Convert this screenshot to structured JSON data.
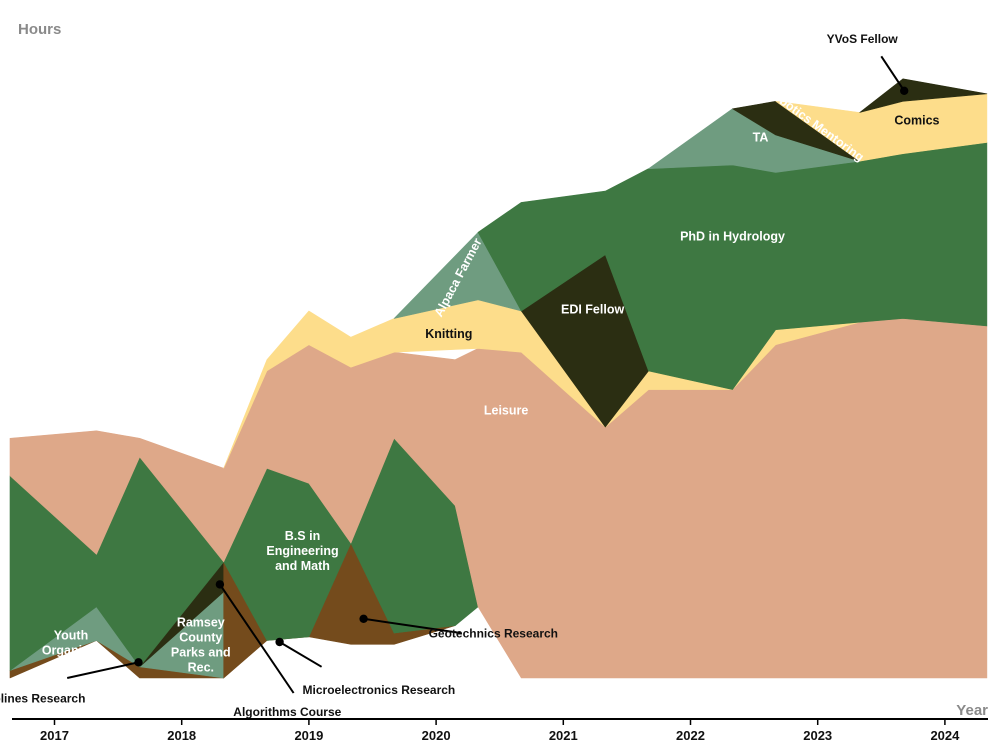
{
  "chart_data": {
    "type": "area",
    "ylabel": "Hours",
    "xlabel": "Year",
    "x_ticks": [
      "2017",
      "2018",
      "2019",
      "2020",
      "2021",
      "2022",
      "2023",
      "2024"
    ],
    "grid": false,
    "colors": {
      "green": "#3e7842",
      "sage": "#6f9c80",
      "peach": "#dea889",
      "yellow": "#fddd8b",
      "dark": "#2b2e12",
      "brown": "#744b1c"
    },
    "series": [
      {
        "name": "Splines Research",
        "color": "#744b1c",
        "x": [
          2016.65,
          2017.33,
          2017.67,
          2018.33
        ],
        "lower": [
          0,
          10,
          0,
          0
        ],
        "upper": [
          2,
          10,
          3,
          0
        ]
      },
      {
        "name": "Youth Organizer",
        "color": "#6f9c80",
        "x": [
          2016.65,
          2017.33,
          2017.67
        ],
        "lower": [
          2,
          10,
          3
        ],
        "upper": [
          2,
          19,
          3
        ]
      },
      {
        "name": "Ramsey County Parks and Rec.",
        "color": "#6f9c80",
        "x": [
          2017.67,
          2018.33
        ],
        "lower": [
          3,
          0
        ],
        "upper": [
          3,
          23
        ]
      },
      {
        "name": "Algorithms Course",
        "color": "#2b2e12",
        "x": [
          2017.67,
          2018.33
        ],
        "lower": [
          3,
          23
        ],
        "upper": [
          3,
          31
        ]
      },
      {
        "name": "Microelectronics Research",
        "color": "#744b1c",
        "x": [
          2018.33,
          2018.67,
          2019
        ],
        "lower": [
          0,
          10,
          11
        ],
        "upper": [
          31,
          10,
          11
        ]
      },
      {
        "name": "Geotechnics Research",
        "color": "#744b1c",
        "x": [
          2019,
          2019.33,
          2019.67,
          2020.15
        ],
        "lower": [
          11,
          9,
          9,
          14
        ],
        "upper": [
          11,
          36,
          12,
          14
        ]
      },
      {
        "name": "B.S in Engineering and Math",
        "color": "#3e7842",
        "x": [
          2016.65,
          2017.33,
          2017.67,
          2018.33,
          2018.67,
          2019,
          2019.33,
          2019.67,
          2020.15,
          2020.33
        ],
        "lower": [
          2,
          19,
          3,
          31,
          10,
          11,
          36,
          12,
          14,
          19
        ],
        "upper": [
          54,
          33,
          59,
          31,
          56,
          52,
          36,
          64,
          46,
          19
        ]
      },
      {
        "name": "Leisure",
        "color": "#dea889",
        "x": [
          2016.65,
          2017.33,
          2017.67,
          2018.33,
          2018.67,
          2019,
          2019.33,
          2019.67,
          2020.15,
          2020.33,
          2020.67,
          2021.33,
          2021.67,
          2022.33,
          2022.67,
          2023.33,
          2023.67,
          2024.33
        ],
        "lower": [
          54,
          33,
          59,
          31,
          56,
          52,
          36,
          64,
          46,
          19,
          0,
          0,
          0,
          0,
          0,
          0,
          0,
          0
        ],
        "upper": [
          64,
          66,
          64,
          56,
          82,
          89,
          83,
          87,
          85,
          88,
          87,
          67,
          77,
          77,
          89,
          95,
          96,
          94
        ]
      },
      {
        "name": "Knitting",
        "color": "#fddd8b",
        "x": [
          2018.33,
          2018.67,
          2019,
          2019.33,
          2019.67,
          2020.33,
          2020.67,
          2021.33,
          2021.67,
          2022.33,
          2022.67,
          2023.33
        ],
        "lower": [
          56,
          82,
          89,
          83,
          87,
          88,
          87,
          67,
          77,
          77,
          89,
          95
        ],
        "upper": [
          56,
          85,
          98,
          91,
          96,
          101,
          98,
          67,
          82,
          77,
          93,
          95
        ]
      },
      {
        "name": "Alpaca Farmer",
        "color": "#6f9c80",
        "x": [
          2019.67,
          2020.33,
          2020.67
        ],
        "lower": [
          96,
          101,
          98
        ],
        "upper": [
          96,
          119,
          98
        ]
      },
      {
        "name": "EDI Fellow",
        "color": "#2b2e12",
        "x": [
          2020.67,
          2021.33,
          2021.67
        ],
        "lower": [
          98,
          67,
          82
        ],
        "upper": [
          98,
          113,
          82
        ]
      },
      {
        "name": "PhD in Hydrology",
        "color": "#3e7842",
        "x": [
          2020.33,
          2020.67,
          2021.33,
          2021.67,
          2022.33,
          2022.67,
          2023.33,
          2023.67,
          2024.33
        ],
        "lower": [
          119,
          98,
          113,
          82,
          77,
          93,
          95,
          96,
          94
        ],
        "upper": [
          119,
          127,
          130,
          136,
          137,
          135,
          138,
          140,
          143
        ]
      },
      {
        "name": "TA",
        "color": "#6f9c80",
        "x": [
          2021.67,
          2022.33,
          2022.67,
          2023.33
        ],
        "lower": [
          136,
          137,
          135,
          138
        ],
        "upper": [
          136,
          152,
          145,
          138
        ]
      },
      {
        "name": "Robotics Mentoring",
        "color": "#2b2e12",
        "x": [
          2022.33,
          2022.67,
          2023.33
        ],
        "lower": [
          152,
          145,
          138
        ],
        "upper": [
          152,
          154,
          138
        ]
      },
      {
        "name": "Comics",
        "color": "#fddd8b",
        "x": [
          2022.67,
          2023.33,
          2023.67,
          2024.33
        ],
        "lower": [
          154,
          138,
          140,
          143
        ],
        "upper": [
          154,
          151,
          154,
          156
        ]
      },
      {
        "name": "YVoS Fellow",
        "color": "#2b2e12",
        "x": [
          2023.33,
          2023.67,
          2024.33
        ],
        "lower": [
          151,
          154,
          156
        ],
        "upper": [
          151,
          160,
          156
        ]
      }
    ],
    "labels": [
      {
        "text": [
          "Youth",
          "Organizer"
        ],
        "series": "Youth Organizer",
        "x": 2017.13,
        "y": 9.5,
        "dark": false
      },
      {
        "text": [
          "Ramsey",
          "County",
          "Parks and",
          "Rec."
        ],
        "series": "Ramsey County Parks and Rec.",
        "x": 2018.15,
        "y": 9,
        "dark": false
      },
      {
        "text": [
          "B.S in",
          "Engineering",
          "and Math"
        ],
        "series": "B.S in Engineering and Math",
        "x": 2018.95,
        "y": 34,
        "dark": false
      },
      {
        "text": [
          "Leisure"
        ],
        "series": "Leisure",
        "x": 2020.55,
        "y": 71.5,
        "dark": false
      },
      {
        "text": [
          "Knitting"
        ],
        "series": "Knitting",
        "x": 2020.1,
        "y": 92,
        "dark": true
      },
      {
        "text": [
          "Alpaca Farmer"
        ],
        "series": "Alpaca Farmer",
        "x": 2020.17,
        "y": 107,
        "dark": false,
        "rotate": -62
      },
      {
        "text": [
          "EDI Fellow"
        ],
        "series": "EDI Fellow",
        "x": 2021.23,
        "y": 98.5,
        "dark": false
      },
      {
        "text": [
          "PhD in Hydrology"
        ],
        "series": "PhD in Hydrology",
        "x": 2022.33,
        "y": 118,
        "dark": false
      },
      {
        "text": [
          "TA"
        ],
        "series": "TA",
        "x": 2022.55,
        "y": 144.5,
        "dark": false
      },
      {
        "text": [
          "Robotics Mentoring"
        ],
        "series": "Robotics Mentoring",
        "x": 2022.98,
        "y": 148,
        "dark": false,
        "rotate": 36
      },
      {
        "text": [
          "Comics"
        ],
        "series": "Comics",
        "x": 2023.78,
        "y": 149,
        "dark": true
      }
    ],
    "callouts": [
      {
        "text": "Splines Research",
        "series": "Splines Research",
        "point": [
          2017.66,
          4.2
        ],
        "anchor": [
          2017.1,
          0
        ],
        "label": [
          2016.85,
          -6.5
        ]
      },
      {
        "text": "Algorithms Course",
        "series": "Algorithms Course",
        "point": [
          2018.3,
          25
        ],
        "anchor": [
          2018.88,
          -4
        ],
        "label": [
          2018.83,
          -10.2
        ]
      },
      {
        "text": "Microelectronics Research",
        "series": "Microelectronics Research",
        "point": [
          2018.77,
          9.6
        ],
        "anchor": [
          2019.1,
          3
        ],
        "label": [
          2019.55,
          -4.3
        ]
      },
      {
        "text": "Geotechnics Research",
        "series": "Geotechnics Research",
        "point": [
          2019.43,
          15.8
        ],
        "anchor": [
          2020.2,
          12
        ],
        "label": [
          2020.45,
          10.8
        ]
      },
      {
        "text": "YVoS Fellow",
        "series": "YVoS Fellow",
        "point": [
          2023.68,
          156.8
        ],
        "anchor": [
          2023.5,
          166
        ],
        "label": [
          2023.35,
          169.6
        ]
      }
    ]
  }
}
